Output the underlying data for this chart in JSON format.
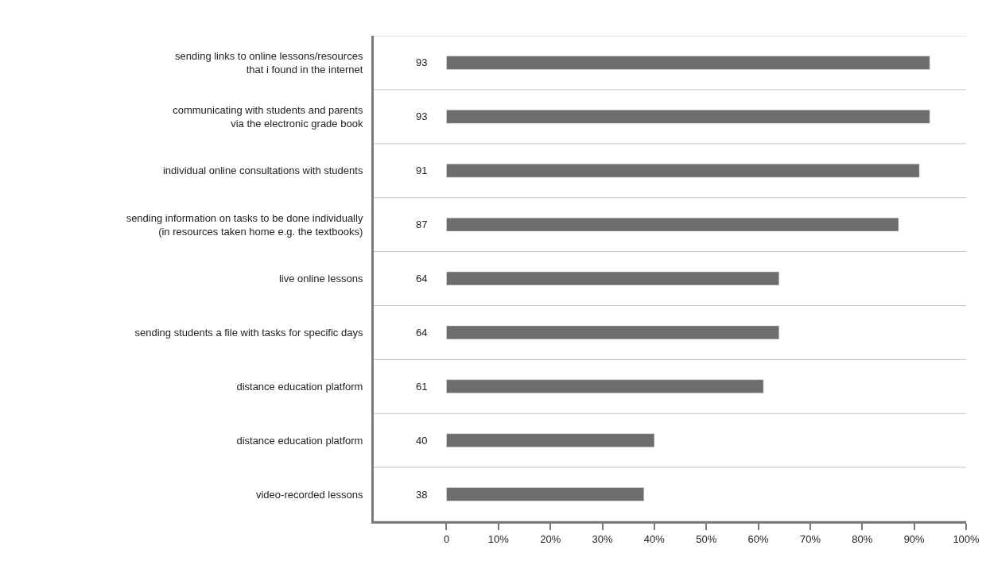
{
  "chart_data": {
    "type": "bar",
    "orientation": "horizontal",
    "categories": [
      "sending links to online lessons/resources\nthat i found in the internet",
      "communicating with students and parents\nvia the electronic grade book",
      "individual online consultations with students",
      "sending information on tasks to be done individually\n(in resources taken home e.g. the textbooks)",
      "live online lessons",
      "sending students a file with tasks for specific days",
      "distance education platform",
      "distance education platform",
      "video-recorded lessons"
    ],
    "values": [
      93,
      93,
      91,
      87,
      64,
      64,
      61,
      40,
      38
    ],
    "color": "#6d6d6d",
    "data_labels": true,
    "xlim": [
      -14,
      100
    ],
    "xticks": [
      {
        "value": 0,
        "label": "0"
      },
      {
        "value": 10,
        "label": "10%"
      },
      {
        "value": 20,
        "label": "20%"
      },
      {
        "value": 30,
        "label": "30%"
      },
      {
        "value": 40,
        "label": "40%"
      },
      {
        "value": 50,
        "label": "50%"
      },
      {
        "value": 60,
        "label": "60%"
      },
      {
        "value": 70,
        "label": "70%"
      },
      {
        "value": 80,
        "label": "80%"
      },
      {
        "value": 90,
        "label": "90%"
      },
      {
        "value": 100,
        "label": "100%"
      }
    ],
    "grid": "y",
    "legend": false
  }
}
